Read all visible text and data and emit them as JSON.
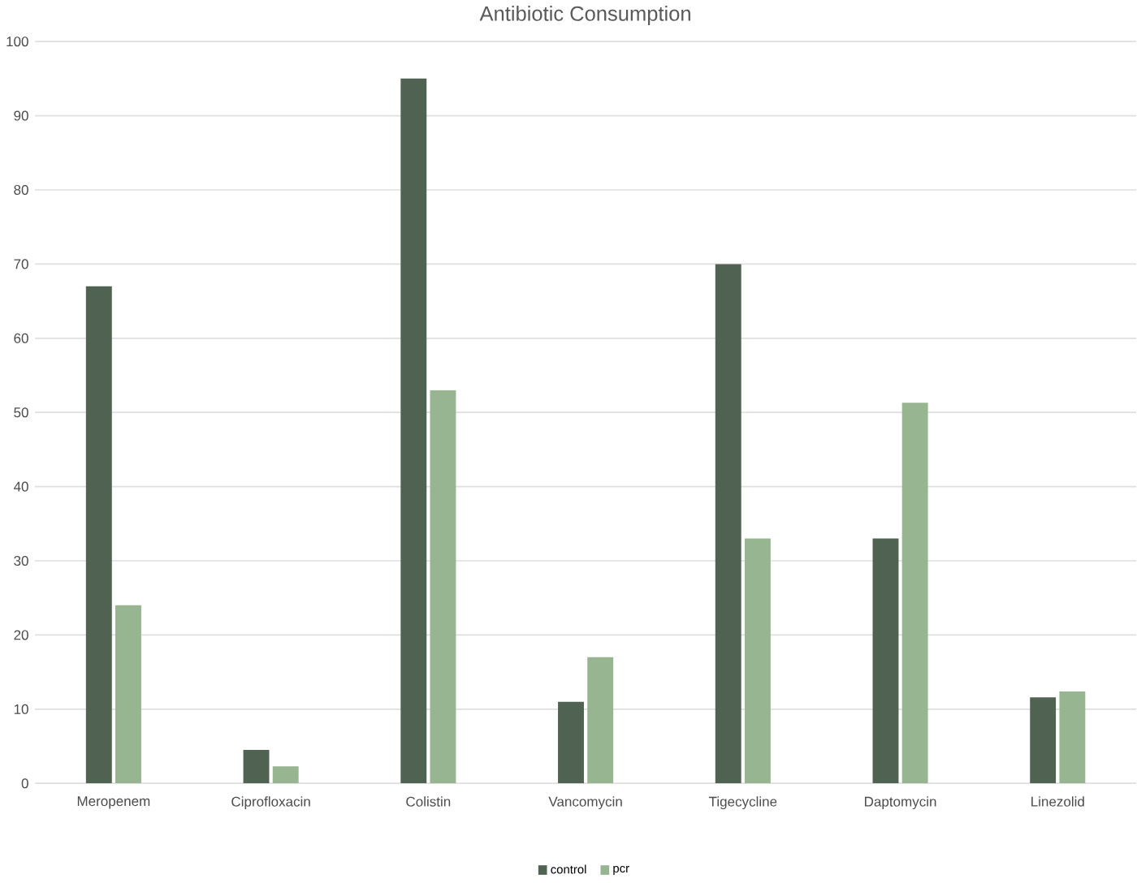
{
  "chart_data": {
    "type": "bar",
    "title": "Antibiotic Consumption",
    "categories": [
      "Meropenem",
      "Ciprofloxacin",
      "Colistin",
      "Vancomycin",
      "Tigecycline",
      "Daptomycin",
      "Linezolid"
    ],
    "series": [
      {
        "name": "control",
        "color": "#506352",
        "values": [
          67,
          4.5,
          95,
          11,
          70,
          33,
          11.6
        ]
      },
      {
        "name": "pcr",
        "color": "#98b592",
        "values": [
          24,
          2.3,
          53,
          17,
          33,
          51.3,
          12.4
        ]
      }
    ],
    "ylim": [
      0,
      100
    ],
    "yticks": [
      0,
      10,
      20,
      30,
      40,
      50,
      60,
      70,
      80,
      90,
      100
    ],
    "grid": "y",
    "legend": "bottom"
  }
}
